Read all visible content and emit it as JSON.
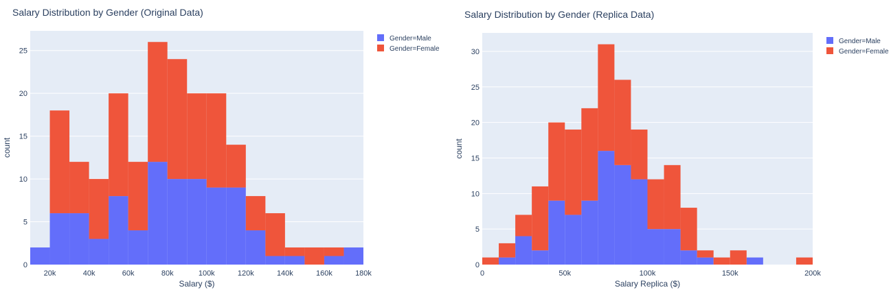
{
  "colors": {
    "male": "#636efa",
    "female": "#ef553b",
    "plot_bg": "#e5ecf6",
    "text": "#2a3f5f"
  },
  "chart_data": [
    {
      "type": "bar",
      "barmode": "stack",
      "title": "Salary Distribution by Gender (Original Data)",
      "xlabel": "Salary ($)",
      "ylabel": "count",
      "bin_start": 10000,
      "bin_size": 10000,
      "xlim": [
        10000,
        180000
      ],
      "ylim": [
        0,
        27.3
      ],
      "xticks": [
        {
          "v": 20000,
          "label": "20k"
        },
        {
          "v": 40000,
          "label": "40k"
        },
        {
          "v": 60000,
          "label": "60k"
        },
        {
          "v": 80000,
          "label": "80k"
        },
        {
          "v": 100000,
          "label": "100k"
        },
        {
          "v": 120000,
          "label": "120k"
        },
        {
          "v": 140000,
          "label": "140k"
        },
        {
          "v": 160000,
          "label": "160k"
        },
        {
          "v": 180000,
          "label": "180k"
        }
      ],
      "yticks": [
        {
          "v": 0,
          "label": "0"
        },
        {
          "v": 5,
          "label": "5"
        },
        {
          "v": 10,
          "label": "10"
        },
        {
          "v": 15,
          "label": "15"
        },
        {
          "v": 20,
          "label": "20"
        },
        {
          "v": 25,
          "label": "25"
        }
      ],
      "series": [
        {
          "name": "Gender=Male",
          "values": [
            2,
            6,
            6,
            3,
            8,
            4,
            12,
            10,
            10,
            9,
            9,
            4,
            1,
            1,
            0,
            1,
            2
          ]
        },
        {
          "name": "Gender=Female",
          "values": [
            0,
            12,
            6,
            7,
            12,
            8,
            14,
            14,
            10,
            11,
            5,
            4,
            5,
            1,
            2,
            1,
            0
          ]
        }
      ],
      "legend": "top-right"
    },
    {
      "type": "bar",
      "barmode": "stack",
      "title": "Salary Distribution by Gender (Replica Data)",
      "xlabel": "Salary Replica ($)",
      "ylabel": "count",
      "bin_start": 0,
      "bin_size": 10000,
      "xlim": [
        0,
        200000
      ],
      "ylim": [
        0,
        32.6
      ],
      "xticks": [
        {
          "v": 0,
          "label": "0"
        },
        {
          "v": 50000,
          "label": "50k"
        },
        {
          "v": 100000,
          "label": "100k"
        },
        {
          "v": 150000,
          "label": "150k"
        },
        {
          "v": 200000,
          "label": "200k"
        }
      ],
      "yticks": [
        {
          "v": 0,
          "label": "0"
        },
        {
          "v": 5,
          "label": "5"
        },
        {
          "v": 10,
          "label": "10"
        },
        {
          "v": 15,
          "label": "15"
        },
        {
          "v": 20,
          "label": "20"
        },
        {
          "v": 25,
          "label": "25"
        },
        {
          "v": 30,
          "label": "30"
        }
      ],
      "series": [
        {
          "name": "Gender=Male",
          "values": [
            0,
            1,
            4,
            2,
            9,
            7,
            9,
            16,
            14,
            12,
            5,
            5,
            2,
            1,
            0,
            0,
            1,
            0,
            0,
            0
          ]
        },
        {
          "name": "Gender=Female",
          "values": [
            1,
            2,
            3,
            9,
            11,
            12,
            13,
            15,
            12,
            7,
            7,
            9,
            6,
            1,
            1,
            2,
            0,
            0,
            0,
            1
          ]
        }
      ],
      "legend": "top-right"
    }
  ]
}
